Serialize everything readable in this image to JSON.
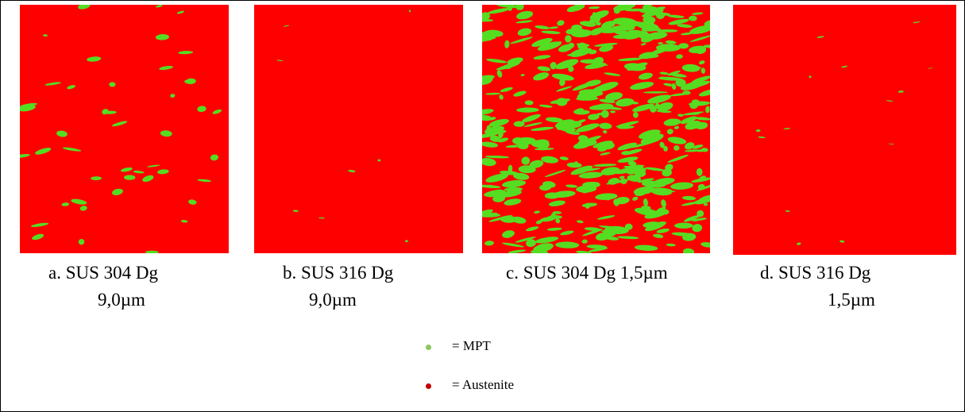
{
  "figure": {
    "panels": [
      {
        "caption": [
          "a. SUS 304 Dg",
          "9,0µm"
        ]
      },
      {
        "caption": [
          "b. SUS 316 Dg",
          "9,0µm"
        ]
      },
      {
        "caption": [
          "c. SUS 304 Dg 1,5µm"
        ]
      },
      {
        "caption": [
          "d. SUS 316 Dg",
          "1,5µm"
        ]
      }
    ],
    "legend": [
      {
        "label": "= MPT"
      },
      {
        "label": "= Austenite"
      }
    ]
  }
}
